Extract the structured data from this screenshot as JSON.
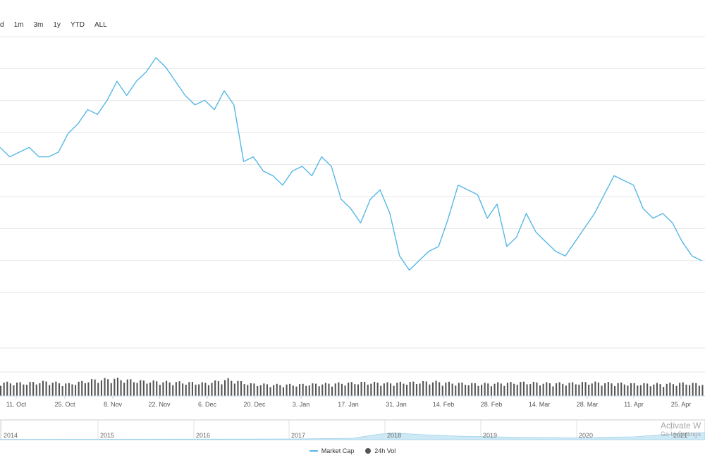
{
  "range_buttons": [
    "d",
    "1m",
    "3m",
    "1y",
    "YTD",
    "ALL"
  ],
  "chart_data": {
    "type": "line",
    "grid": true,
    "series": [
      {
        "name": "Market Cap",
        "color": "#56b7e6",
        "x": [
          "2019-09-28",
          "2019-10-01",
          "2019-10-04",
          "2019-10-07",
          "2019-10-10",
          "2019-10-13",
          "2019-10-16",
          "2019-10-19",
          "2019-10-22",
          "2019-10-25",
          "2019-10-28",
          "2019-10-31",
          "2019-11-03",
          "2019-11-06",
          "2019-11-09",
          "2019-11-12",
          "2019-11-15",
          "2019-11-18",
          "2019-11-21",
          "2019-11-24",
          "2019-11-27",
          "2019-11-30",
          "2019-12-03",
          "2019-12-06",
          "2019-12-09",
          "2019-12-12",
          "2019-12-15",
          "2019-12-18",
          "2019-12-21",
          "2019-12-24",
          "2019-12-27",
          "2019-12-30",
          "2020-01-02",
          "2020-01-05",
          "2020-01-08",
          "2020-01-11",
          "2020-01-14",
          "2020-01-17",
          "2020-01-20",
          "2020-01-23",
          "2020-01-26",
          "2020-01-29",
          "2020-02-01",
          "2020-02-04",
          "2020-02-07",
          "2020-02-10",
          "2020-02-13",
          "2020-02-16",
          "2020-02-19",
          "2020-02-22",
          "2020-02-25",
          "2020-02-28",
          "2020-03-02",
          "2020-03-05",
          "2020-03-08",
          "2020-03-11",
          "2020-03-14",
          "2020-03-17",
          "2020-03-20",
          "2020-03-23",
          "2020-03-26",
          "2020-03-29",
          "2020-04-01",
          "2020-04-04",
          "2020-04-07",
          "2020-04-10",
          "2020-04-13",
          "2020-04-16",
          "2020-04-19",
          "2020-04-22",
          "2020-04-25",
          "2020-04-28",
          "2020-05-01"
        ],
        "values": [
          64,
          62,
          63,
          64,
          62,
          62,
          63,
          67,
          69,
          72,
          71,
          74,
          78,
          75,
          78,
          80,
          83,
          81,
          78,
          75,
          73,
          74,
          72,
          76,
          73,
          61,
          62,
          59,
          58,
          56,
          59,
          60,
          58,
          62,
          60,
          53,
          51,
          48,
          53,
          55,
          50,
          41,
          38,
          40,
          42,
          43,
          49,
          56,
          55,
          54,
          49,
          52,
          43,
          45,
          50,
          46,
          44,
          42,
          41,
          44,
          47,
          50,
          54,
          58,
          57,
          56,
          51,
          49,
          50,
          48,
          44,
          41,
          40
        ]
      },
      {
        "name": "24h Vol",
        "color": "#555555",
        "x": [
          "2019-09-28",
          "2019-10-05",
          "2019-10-12",
          "2019-10-19",
          "2019-10-26",
          "2019-11-02",
          "2019-11-09",
          "2019-11-16",
          "2019-11-23",
          "2019-11-30",
          "2019-12-07",
          "2019-12-14",
          "2019-12-21",
          "2019-12-28",
          "2020-01-04",
          "2020-01-11",
          "2020-01-18",
          "2020-01-25",
          "2020-02-01",
          "2020-02-08",
          "2020-02-15",
          "2020-02-22",
          "2020-02-29",
          "2020-03-07",
          "2020-03-14",
          "2020-03-21",
          "2020-03-28",
          "2020-04-04",
          "2020-04-11",
          "2020-04-18",
          "2020-04-25",
          "2020-05-01"
        ],
        "values": [
          18,
          17,
          19,
          16,
          21,
          23,
          20,
          19,
          18,
          17,
          22,
          16,
          15,
          15,
          16,
          17,
          18,
          17,
          18,
          19,
          17,
          16,
          17,
          18,
          17,
          17,
          18,
          17,
          16,
          16,
          17,
          16
        ]
      }
    ],
    "x_ticks": [
      "11. Oct",
      "25. Oct",
      "8. Nov",
      "22. Nov",
      "6. Dec",
      "20. Dec",
      "3. Jan",
      "17. Jan",
      "31. Jan",
      "14. Feb",
      "28. Feb",
      "14. Mar",
      "28. Mar",
      "11. Apr",
      "25. Apr"
    ],
    "navigator": {
      "years": [
        "2014",
        "2015",
        "2016",
        "2017",
        "2018",
        "2019",
        "2020",
        "2021"
      ]
    },
    "legend_position": "bottom-center"
  },
  "watermark": {
    "line1": "Activate W",
    "line2": "Go to Settings"
  }
}
